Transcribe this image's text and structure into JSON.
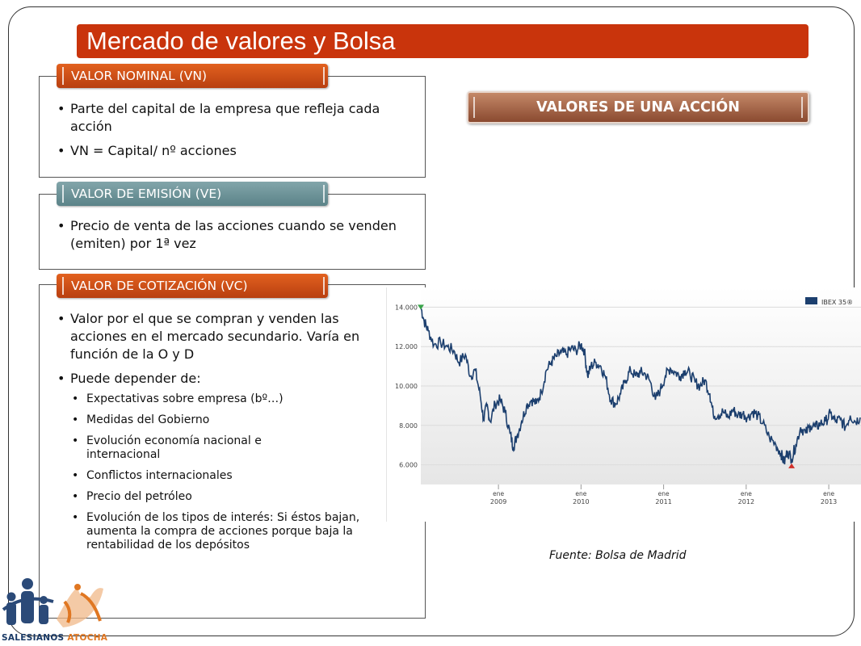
{
  "slide": {
    "title": "Mercado de valores y Bolsa",
    "header_right": "VALORES DE UNA ACCIÓN",
    "source": "Fuente: Bolsa de Madrid"
  },
  "sections": {
    "vn": {
      "tab": "VALOR NOMINAL (VN)",
      "bullets": [
        "Parte del capital de la empresa que refleja cada acción",
        "VN = Capital/ nº acciones"
      ]
    },
    "ve": {
      "tab": "VALOR DE EMISIÓN (VE)",
      "bullets": [
        "Precio de venta de las acciones cuando se venden (emiten) por 1ª vez"
      ]
    },
    "vc": {
      "tab": "VALOR DE COTIZACIÓN (VC)",
      "bullets": [
        "Valor por el que se compran y venden las acciones en el mercado secundario. Varía en función de la O y D",
        "Puede depender de:"
      ],
      "sub_bullets": [
        "Expectativas sobre empresa (bº…)",
        "Medidas del Gobierno",
        "Evolución economía nacional e internacional",
        "Conflictos internacionales",
        "Precio del petróleo",
        "Evolución de los tipos de interés: Si éstos bajan, aumenta la compra de acciones porque baja la rentabilidad de los depósitos"
      ]
    }
  },
  "chart_data": {
    "type": "line",
    "legend": "IBEX 35®",
    "legend_position": "top-right",
    "y_ticks": [
      "14.000",
      "12.000",
      "10.000",
      "8.000",
      "6.000"
    ],
    "x_ticks": [
      {
        "month": "ene",
        "year": "2009"
      },
      {
        "month": "ene",
        "year": "2010"
      },
      {
        "month": "ene",
        "year": "2011"
      },
      {
        "month": "ene",
        "year": "2012"
      },
      {
        "month": "ene",
        "year": "2013"
      }
    ],
    "ylim": [
      5000,
      15000
    ],
    "xlim": [
      2008.06,
      2013.4
    ],
    "series": [
      {
        "name": "IBEX 35®",
        "color": "#1c3f6e",
        "points": [
          [
            2008.06,
            14000
          ],
          [
            2008.1,
            13300
          ],
          [
            2008.15,
            12800
          ],
          [
            2008.22,
            12100
          ],
          [
            2008.3,
            12200
          ],
          [
            2008.38,
            12000
          ],
          [
            2008.46,
            11800
          ],
          [
            2008.52,
            11200
          ],
          [
            2008.6,
            11600
          ],
          [
            2008.66,
            10500
          ],
          [
            2008.72,
            10800
          ],
          [
            2008.78,
            9500
          ],
          [
            2008.82,
            8300
          ],
          [
            2008.86,
            9000
          ],
          [
            2008.9,
            8200
          ],
          [
            2008.96,
            9100
          ],
          [
            2009.02,
            9300
          ],
          [
            2009.08,
            8700
          ],
          [
            2009.14,
            7600
          ],
          [
            2009.18,
            6900
          ],
          [
            2009.22,
            7400
          ],
          [
            2009.28,
            8200
          ],
          [
            2009.34,
            9000
          ],
          [
            2009.4,
            9300
          ],
          [
            2009.46,
            9100
          ],
          [
            2009.52,
            9700
          ],
          [
            2009.58,
            10800
          ],
          [
            2009.64,
            11200
          ],
          [
            2009.7,
            11500
          ],
          [
            2009.76,
            11700
          ],
          [
            2009.82,
            11600
          ],
          [
            2009.88,
            11900
          ],
          [
            2009.94,
            11800
          ],
          [
            2010.0,
            12100
          ],
          [
            2010.04,
            11800
          ],
          [
            2010.08,
            10500
          ],
          [
            2010.12,
            11000
          ],
          [
            2010.18,
            11200
          ],
          [
            2010.24,
            11000
          ],
          [
            2010.3,
            10400
          ],
          [
            2010.36,
            9300
          ],
          [
            2010.42,
            9100
          ],
          [
            2010.48,
            9600
          ],
          [
            2010.54,
            10300
          ],
          [
            2010.6,
            10800
          ],
          [
            2010.66,
            10500
          ],
          [
            2010.72,
            10700
          ],
          [
            2010.78,
            10600
          ],
          [
            2010.84,
            10200
          ],
          [
            2010.9,
            9300
          ],
          [
            2010.96,
            9800
          ],
          [
            2011.02,
            10500
          ],
          [
            2011.08,
            10900
          ],
          [
            2011.14,
            10700
          ],
          [
            2011.2,
            10500
          ],
          [
            2011.26,
            10800
          ],
          [
            2011.32,
            10600
          ],
          [
            2011.38,
            10200
          ],
          [
            2011.44,
            10000
          ],
          [
            2011.5,
            10300
          ],
          [
            2011.56,
            9600
          ],
          [
            2011.6,
            8600
          ],
          [
            2011.66,
            8500
          ],
          [
            2011.72,
            8700
          ],
          [
            2011.78,
            8400
          ],
          [
            2011.84,
            8800
          ],
          [
            2011.9,
            8500
          ],
          [
            2011.96,
            8600
          ],
          [
            2012.02,
            8400
          ],
          [
            2012.08,
            8700
          ],
          [
            2012.14,
            8500
          ],
          [
            2012.2,
            8100
          ],
          [
            2012.28,
            7400
          ],
          [
            2012.36,
            7000
          ],
          [
            2012.42,
            6600
          ],
          [
            2012.46,
            6100
          ],
          [
            2012.5,
            6700
          ],
          [
            2012.55,
            6300
          ],
          [
            2012.6,
            7000
          ],
          [
            2012.66,
            7900
          ],
          [
            2012.72,
            7600
          ],
          [
            2012.78,
            8000
          ],
          [
            2012.84,
            7900
          ],
          [
            2012.9,
            8100
          ],
          [
            2012.96,
            8200
          ],
          [
            2013.02,
            8600
          ],
          [
            2013.08,
            8200
          ],
          [
            2013.14,
            8300
          ],
          [
            2013.2,
            7900
          ],
          [
            2013.26,
            8500
          ],
          [
            2013.32,
            8200
          ],
          [
            2013.38,
            8400
          ]
        ]
      }
    ],
    "markers": [
      {
        "type": "max",
        "x": 2008.06,
        "y": 14000,
        "color": "#39a34a"
      },
      {
        "type": "min",
        "x": 2012.55,
        "y": 5950,
        "color": "#d0302a"
      }
    ]
  },
  "logo": {
    "text_part1": "SALESIANOS ",
    "text_part2": "ATOCHA",
    "colors": {
      "blue": "#1a3a66",
      "orange": "#e07722"
    }
  }
}
